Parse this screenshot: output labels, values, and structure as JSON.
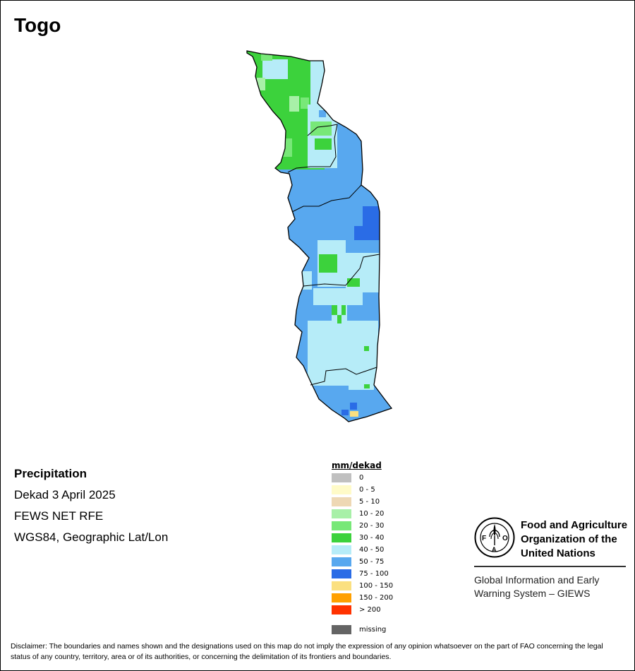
{
  "map": {
    "title": "Togo",
    "fill_colors": {
      "c10_20": "#a8f0a8",
      "c20_30": "#78e878",
      "c30_40": "#3cd23c",
      "c40_50": "#b6ecf8",
      "c50_75": "#58a8ef",
      "c75_100": "#2a6ce6",
      "c100_150": "#fbe080"
    }
  },
  "info": {
    "variable": "Precipitation",
    "period": "Dekad 3 April 2025",
    "source": "FEWS NET RFE",
    "projection": "WGS84, Geographic Lat/Lon"
  },
  "legend": {
    "title": "mm/dekad",
    "items": [
      {
        "label": "0",
        "color": "#c0c0c0"
      },
      {
        "label": "0 - 5",
        "color": "#fffbc8"
      },
      {
        "label": "5 - 10",
        "color": "#eed8b4"
      },
      {
        "label": "10 - 20",
        "color": "#a8f0a8"
      },
      {
        "label": "20 - 30",
        "color": "#78e878"
      },
      {
        "label": "30 - 40",
        "color": "#3cd23c"
      },
      {
        "label": "40 - 50",
        "color": "#b6ecf8"
      },
      {
        "label": "50 - 75",
        "color": "#58a8ef"
      },
      {
        "label": "75 - 100",
        "color": "#2a6ce6"
      },
      {
        "label": "100 - 150",
        "color": "#fbe080"
      },
      {
        "label": "150 - 200",
        "color": "#ffa000"
      },
      {
        "label": "> 200",
        "color": "#ff3200"
      }
    ],
    "missing": {
      "label": "missing",
      "color": "#646464"
    }
  },
  "org": {
    "name_line1": "Food and Agriculture",
    "name_line2": "Organization of the",
    "name_line3": "United Nations",
    "system_line1": "Global Information and Early",
    "system_line2": "Warning System – GIEWS",
    "logo_icon": "fao-logo-icon",
    "logo_letters": "FAO",
    "logo_motto": "FIAT PANIS"
  },
  "disclaimer": "Disclaimer: The boundaries and names shown and the designations used on this map do not imply the expression of any opinion whatsoever on the part of FAO concerning the legal status of any country, territory, area or of its authorities, or concerning the delimitation of its frontiers and boundaries."
}
